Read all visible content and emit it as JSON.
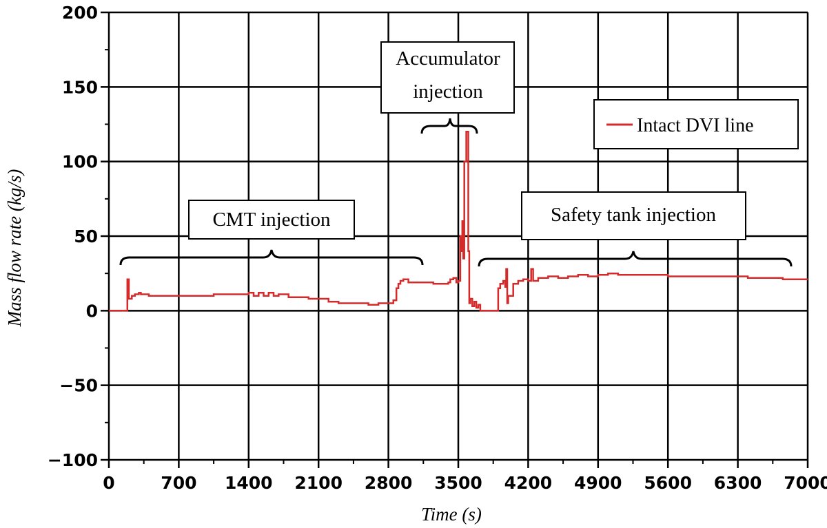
{
  "chart_data": {
    "type": "line",
    "title": "",
    "xlabel": "Time (s)",
    "ylabel": "Mass flow rate (kg/s)",
    "xlim": [
      0,
      7000
    ],
    "ylim": [
      -100,
      200
    ],
    "xticks": [
      0,
      700,
      1400,
      2100,
      2800,
      3500,
      4200,
      4900,
      5600,
      6300,
      7000
    ],
    "yticks": [
      -100,
      -50,
      0,
      50,
      100,
      150,
      200
    ],
    "x_tick_labels": [
      "0",
      "700",
      "1400",
      "2100",
      "2800",
      "3500",
      "4200",
      "4900",
      "5600",
      "6300",
      "7000"
    ],
    "y_tick_labels": [
      "−100",
      "−50",
      "0",
      "50",
      "100",
      "150",
      "200"
    ],
    "grid": true,
    "legend_position": "top-right",
    "series": [
      {
        "name": "Intact DVI line",
        "color": "#d42a2a",
        "points": [
          [
            0,
            0
          ],
          [
            180,
            0
          ],
          [
            185,
            21
          ],
          [
            200,
            8
          ],
          [
            230,
            10
          ],
          [
            260,
            11
          ],
          [
            300,
            12
          ],
          [
            320,
            11
          ],
          [
            400,
            10
          ],
          [
            600,
            10
          ],
          [
            800,
            10
          ],
          [
            1000,
            10
          ],
          [
            1050,
            11
          ],
          [
            1150,
            11
          ],
          [
            1250,
            11
          ],
          [
            1380,
            11
          ],
          [
            1400,
            12
          ],
          [
            1450,
            10
          ],
          [
            1500,
            12
          ],
          [
            1550,
            10
          ],
          [
            1600,
            12
          ],
          [
            1650,
            10
          ],
          [
            1700,
            11
          ],
          [
            1800,
            9
          ],
          [
            1950,
            9
          ],
          [
            2000,
            8
          ],
          [
            2150,
            8
          ],
          [
            2200,
            6
          ],
          [
            2300,
            5
          ],
          [
            2500,
            5
          ],
          [
            2600,
            4
          ],
          [
            2700,
            5
          ],
          [
            2800,
            5
          ],
          [
            2850,
            7
          ],
          [
            2880,
            15
          ],
          [
            2900,
            18
          ],
          [
            2920,
            20
          ],
          [
            2950,
            21
          ],
          [
            3000,
            19
          ],
          [
            3200,
            19
          ],
          [
            3250,
            18
          ],
          [
            3400,
            19
          ],
          [
            3420,
            21
          ],
          [
            3450,
            22
          ],
          [
            3480,
            19
          ],
          [
            3500,
            20
          ],
          [
            3520,
            50
          ],
          [
            3530,
            40
          ],
          [
            3540,
            60
          ],
          [
            3550,
            35
          ],
          [
            3560,
            100
          ],
          [
            3580,
            120
          ],
          [
            3600,
            40
          ],
          [
            3610,
            5
          ],
          [
            3620,
            8
          ],
          [
            3640,
            3
          ],
          [
            3660,
            6
          ],
          [
            3680,
            2
          ],
          [
            3700,
            4
          ],
          [
            3720,
            0
          ],
          [
            3850,
            0
          ],
          [
            3880,
            0
          ],
          [
            3900,
            15
          ],
          [
            3920,
            18
          ],
          [
            3950,
            20
          ],
          [
            3970,
            16
          ],
          [
            3980,
            28
          ],
          [
            3990,
            5
          ],
          [
            4000,
            10
          ],
          [
            4050,
            18
          ],
          [
            4100,
            20
          ],
          [
            4150,
            21
          ],
          [
            4200,
            20
          ],
          [
            4230,
            28
          ],
          [
            4250,
            20
          ],
          [
            4300,
            22
          ],
          [
            4400,
            23
          ],
          [
            4500,
            22
          ],
          [
            4600,
            23
          ],
          [
            4700,
            24
          ],
          [
            4800,
            23
          ],
          [
            4900,
            24
          ],
          [
            5000,
            25
          ],
          [
            5100,
            24
          ],
          [
            5200,
            24
          ],
          [
            5400,
            24
          ],
          [
            5600,
            23
          ],
          [
            5800,
            23
          ],
          [
            6000,
            23
          ],
          [
            6200,
            23
          ],
          [
            6400,
            22
          ],
          [
            6600,
            22
          ],
          [
            6700,
            22
          ],
          [
            6750,
            21
          ],
          [
            6800,
            21
          ],
          [
            7000,
            21
          ]
        ]
      }
    ],
    "annotations": [
      {
        "lines": [
          "CMT injection"
        ],
        "x_range": [
          100,
          3200
        ],
        "y": 30
      },
      {
        "lines": [
          "Accumulator",
          "injection"
        ],
        "x_range": [
          3200,
          3800
        ],
        "y": 123
      },
      {
        "lines": [
          "Safety tank injection"
        ],
        "x_range": [
          3750,
          6950
        ],
        "y": 30
      }
    ]
  }
}
